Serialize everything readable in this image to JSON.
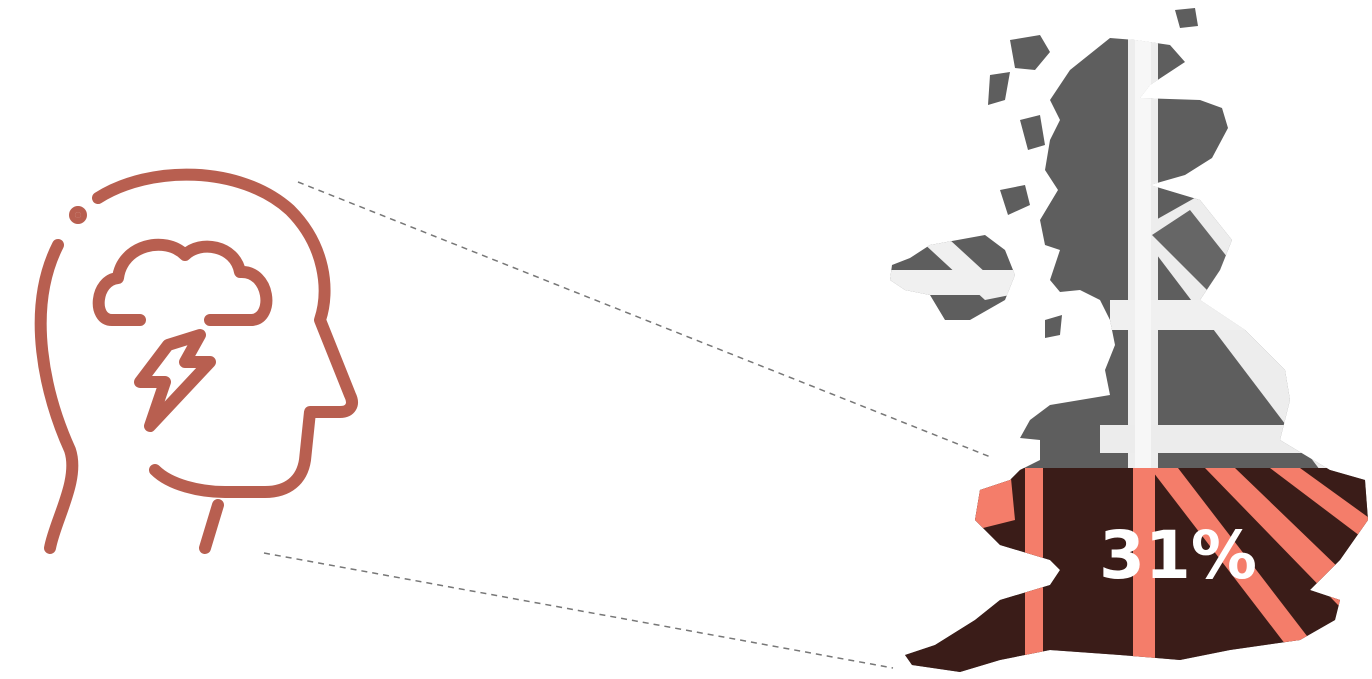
{
  "infographic": {
    "percent_label": "31%",
    "highlight_fraction": 0.31,
    "head_icon": "head-with-storm-cloud-icon",
    "map_icon": "uk-map-union-jack"
  },
  "colors": {
    "icon_stroke": "#b85f50",
    "connector_line": "#777777",
    "map_dark_gray": "#5c5c5c",
    "map_light": "#f2f2f2",
    "highlight_dark": "#3a1c18",
    "highlight_accent": "#f47d6a",
    "label_text": "#ffffff"
  }
}
